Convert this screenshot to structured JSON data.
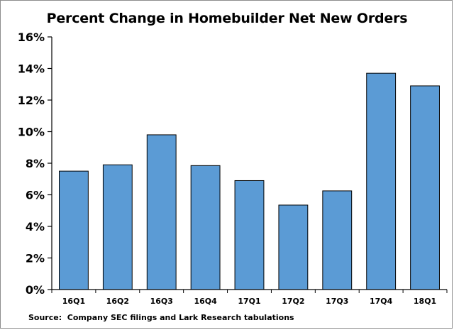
{
  "chart_data": {
    "type": "bar",
    "title": "Percent Change in Homebuilder Net New Orders",
    "xlabel": "",
    "ylabel": "",
    "categories": [
      "16Q1",
      "16Q2",
      "16Q3",
      "16Q4",
      "17Q1",
      "17Q2",
      "17Q3",
      "17Q4",
      "18Q1"
    ],
    "values": [
      7.5,
      7.9,
      9.8,
      7.85,
      6.9,
      5.35,
      6.25,
      13.7,
      12.9
    ],
    "ylim": [
      0,
      16
    ],
    "yticks": [
      0,
      2,
      4,
      6,
      8,
      10,
      12,
      14,
      16
    ],
    "ytick_labels": [
      "0%",
      "2%",
      "4%",
      "6%",
      "8%",
      "10%",
      "12%",
      "14%",
      "16%"
    ],
    "grid": false,
    "legend": "none",
    "bar_color": "#5b9bd5",
    "source": "Source:  Company SEC filings and Lark Research tabulations"
  }
}
